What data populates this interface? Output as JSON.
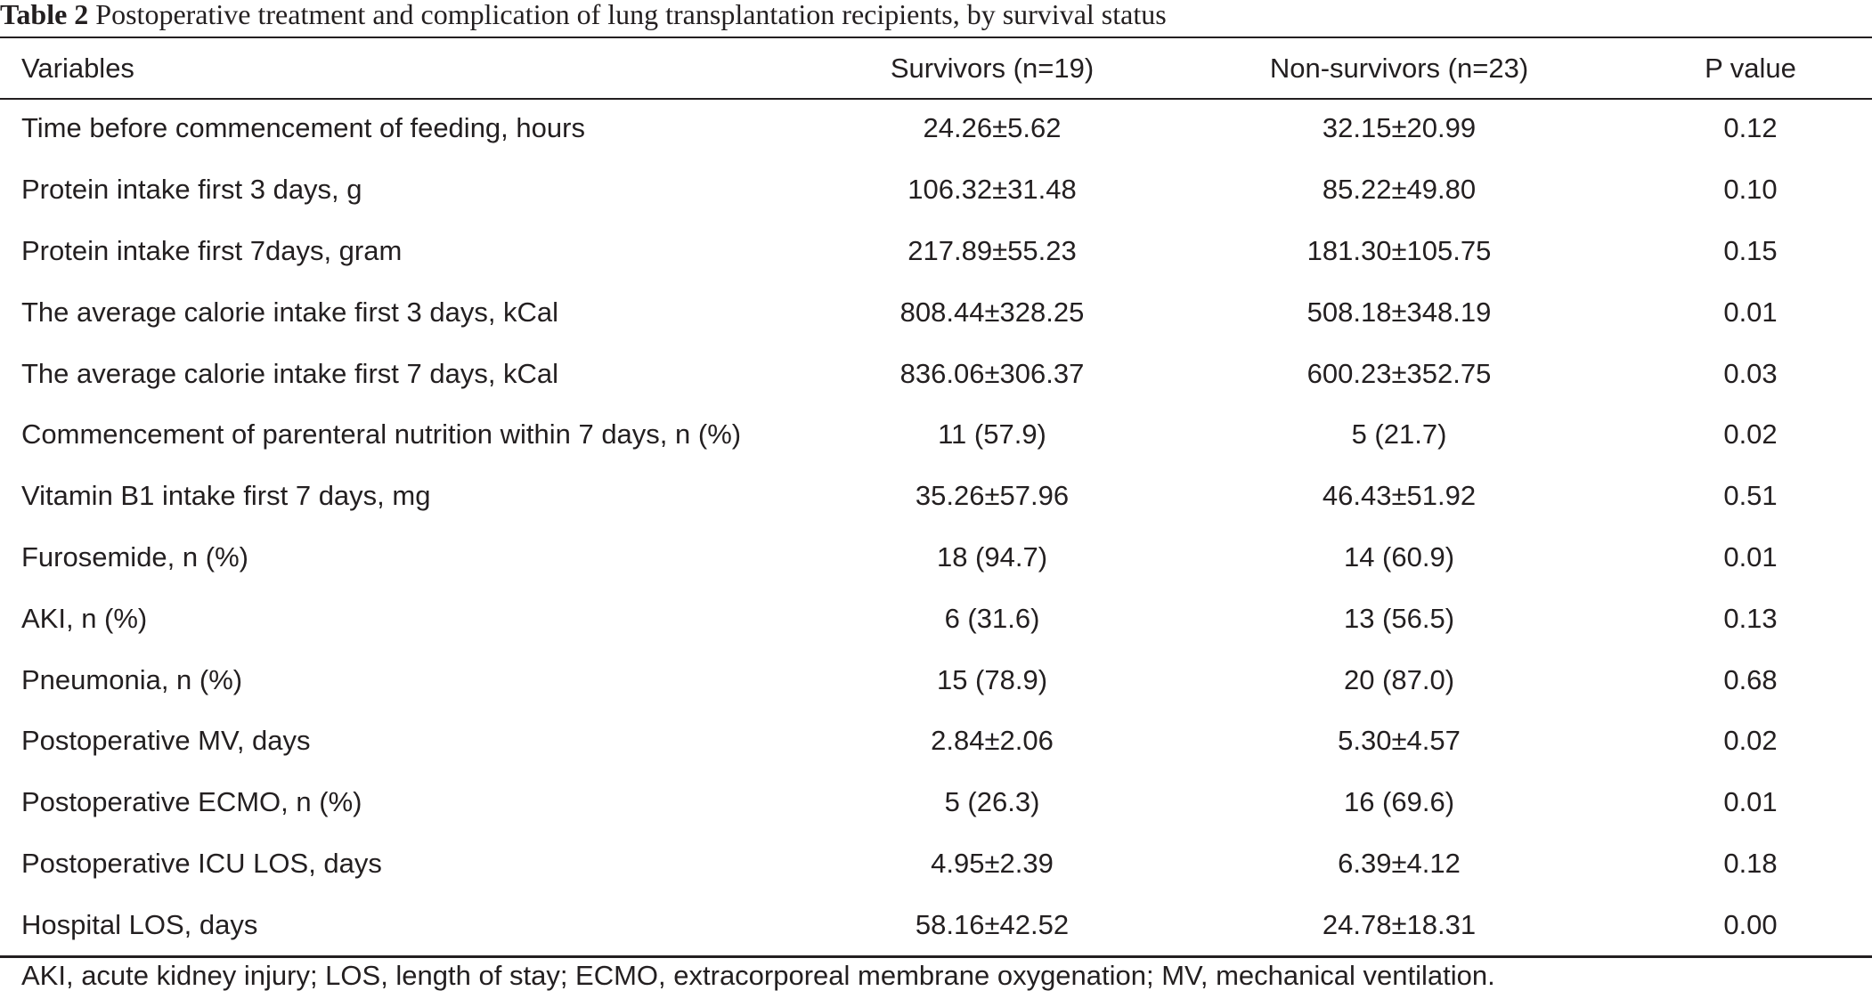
{
  "caption": {
    "label": "Table 2",
    "text": " Postoperative treatment and complication of lung transplantation recipients, by survival status"
  },
  "table": {
    "headers": [
      "Variables",
      "Survivors (n=19)",
      "Non-survivors (n=23)",
      "P value"
    ],
    "rows": [
      [
        "Time before commencement of feeding, hours",
        "24.26±5.62",
        "32.15±20.99",
        "0.12"
      ],
      [
        "Protein intake first 3 days, g",
        "106.32±31.48",
        "85.22±49.80",
        "0.10"
      ],
      [
        "Protein intake first 7days, gram",
        "217.89±55.23",
        "181.30±105.75",
        "0.15"
      ],
      [
        "The average calorie intake first 3 days, kCal",
        "808.44±328.25",
        "508.18±348.19",
        "0.01"
      ],
      [
        "The average calorie intake first 7 days, kCal",
        "836.06±306.37",
        "600.23±352.75",
        "0.03"
      ],
      [
        "Commencement of parenteral nutrition within 7 days, n (%)",
        "11 (57.9)",
        "5 (21.7)",
        "0.02"
      ],
      [
        "Vitamin B1 intake first 7 days, mg",
        "35.26±57.96",
        "46.43±51.92",
        "0.51"
      ],
      [
        "Furosemide, n (%)",
        "18 (94.7)",
        "14 (60.9)",
        "0.01"
      ],
      [
        "AKI, n (%)",
        "6 (31.6)",
        "13 (56.5)",
        "0.13"
      ],
      [
        "Pneumonia, n (%)",
        "15 (78.9)",
        "20 (87.0)",
        "0.68"
      ],
      [
        "Postoperative MV, days",
        "2.84±2.06",
        "5.30±4.57",
        "0.02"
      ],
      [
        "Postoperative ECMO, n (%)",
        "5 (26.3)",
        "16 (69.6)",
        "0.01"
      ],
      [
        "Postoperative ICU LOS, days",
        "4.95±2.39",
        "6.39±4.12",
        "0.18"
      ],
      [
        "Hospital LOS, days",
        "58.16±42.52",
        "24.78±18.31",
        "0.00"
      ]
    ]
  },
  "footnote": "AKI, acute kidney injury; LOS, length of stay; ECMO, extracorporeal membrane oxygenation; MV, mechanical ventilation."
}
